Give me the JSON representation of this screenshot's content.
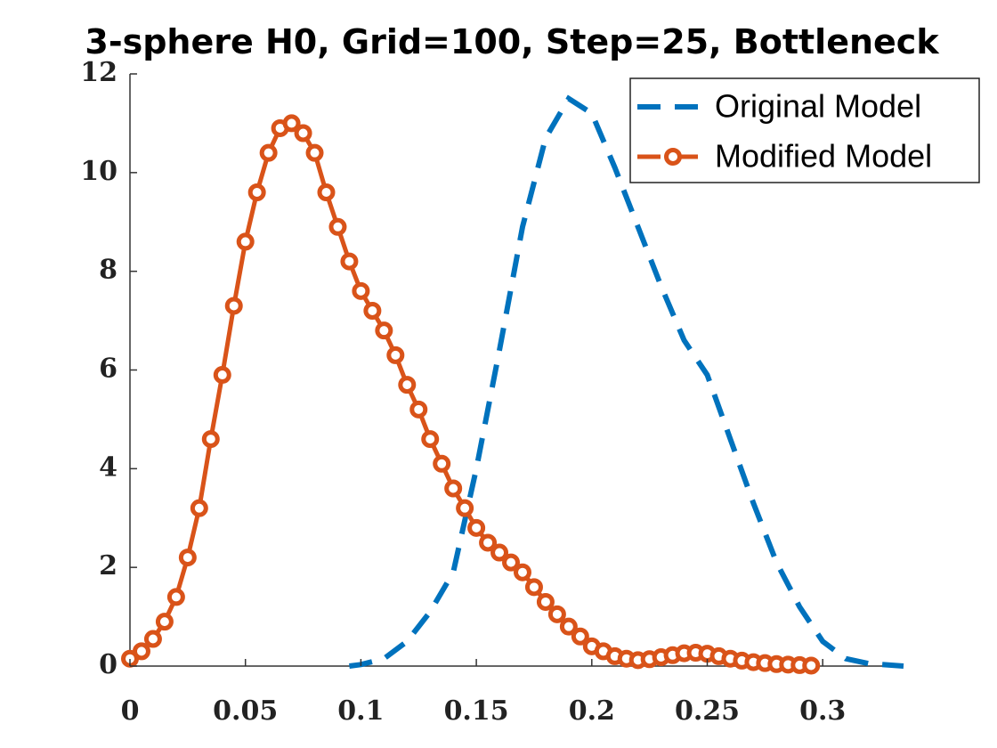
{
  "chart_data": {
    "type": "line",
    "title": "3-sphere H0, Grid=100, Step=25, Bottleneck",
    "xlim": [
      0,
      0.335
    ],
    "ylim": [
      0,
      12
    ],
    "xticks": [
      0,
      0.05,
      0.1,
      0.15,
      0.2,
      0.25,
      0.3
    ],
    "yticks": [
      0,
      2,
      4,
      6,
      8,
      10,
      12
    ],
    "legend": "upper right",
    "series": [
      {
        "name": "Original Model",
        "color": "#0072bd",
        "style": "dashed",
        "x": [
          0.095,
          0.1,
          0.11,
          0.12,
          0.13,
          0.14,
          0.15,
          0.16,
          0.17,
          0.18,
          0.19,
          0.2,
          0.21,
          0.22,
          0.23,
          0.24,
          0.25,
          0.26,
          0.27,
          0.28,
          0.29,
          0.3,
          0.31,
          0.32,
          0.335
        ],
        "values": [
          0,
          0.03,
          0.15,
          0.5,
          1.1,
          1.9,
          4.0,
          6.4,
          8.9,
          10.7,
          11.5,
          11.2,
          10.1,
          8.9,
          7.7,
          6.6,
          5.9,
          4.6,
          3.3,
          2.1,
          1.2,
          0.5,
          0.15,
          0.05,
          0
        ]
      },
      {
        "name": "Modified Model",
        "color": "#d95319",
        "style": "solid-markers",
        "x": [
          0,
          0.005,
          0.01,
          0.015,
          0.02,
          0.025,
          0.03,
          0.035,
          0.04,
          0.045,
          0.05,
          0.055,
          0.06,
          0.065,
          0.07,
          0.075,
          0.08,
          0.085,
          0.09,
          0.095,
          0.1,
          0.105,
          0.11,
          0.115,
          0.12,
          0.125,
          0.13,
          0.135,
          0.14,
          0.145,
          0.15,
          0.155,
          0.16,
          0.165,
          0.17,
          0.175,
          0.18,
          0.185,
          0.19,
          0.195,
          0.2,
          0.205,
          0.21,
          0.215,
          0.22,
          0.225,
          0.23,
          0.235,
          0.24,
          0.245,
          0.25,
          0.255,
          0.26,
          0.265,
          0.27,
          0.275,
          0.28,
          0.285,
          0.29,
          0.295
        ],
        "values": [
          0.15,
          0.3,
          0.55,
          0.9,
          1.4,
          2.2,
          3.2,
          4.6,
          5.9,
          7.3,
          8.6,
          9.6,
          10.4,
          10.9,
          11.0,
          10.8,
          10.4,
          9.6,
          8.9,
          8.2,
          7.6,
          7.2,
          6.8,
          6.3,
          5.7,
          5.2,
          4.6,
          4.1,
          3.6,
          3.2,
          2.8,
          2.5,
          2.3,
          2.1,
          1.9,
          1.6,
          1.3,
          1.05,
          0.8,
          0.6,
          0.4,
          0.3,
          0.2,
          0.15,
          0.12,
          0.14,
          0.18,
          0.22,
          0.26,
          0.27,
          0.25,
          0.2,
          0.15,
          0.11,
          0.08,
          0.06,
          0.04,
          0.03,
          0.02,
          0.01
        ]
      }
    ]
  }
}
